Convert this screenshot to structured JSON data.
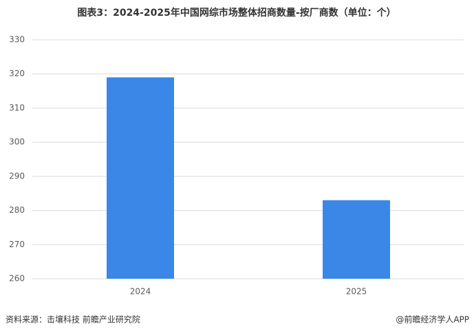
{
  "chart_data": {
    "type": "bar",
    "title": "图表3：2024-2025年中国网综市场整体招商数量-按厂商数（单位：个）",
    "categories": [
      "2024",
      "2025"
    ],
    "values": [
      319,
      283
    ],
    "color": "#3a87e8",
    "ylim": [
      260,
      330
    ],
    "yticks": [
      260,
      270,
      280,
      290,
      300,
      310,
      320,
      330
    ],
    "grid": true
  },
  "footer": {
    "source": "资料来源：击壤科技  前瞻产业研究院",
    "credit": "@前瞻经济学人APP"
  }
}
